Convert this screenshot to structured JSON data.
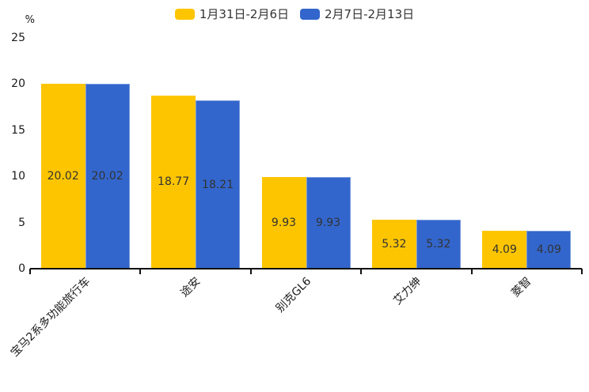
{
  "chart_data": {
    "type": "bar",
    "title": "",
    "categories": [
      "宝马2系多功能旅行车",
      "途安",
      "别克GL6",
      "艾力绅",
      "菱智"
    ],
    "series": [
      {
        "name": "1月31日-2月6日",
        "color": "#FDC500",
        "values": [
          20.02,
          18.77,
          9.93,
          5.32,
          4.09
        ]
      },
      {
        "name": "2月7日-2月13日",
        "color": "#3366CC",
        "values": [
          20.02,
          18.21,
          9.93,
          5.32,
          4.09
        ]
      }
    ],
    "value_labels": [
      [
        "20.02",
        "18.77",
        "9.93",
        "5.32",
        "4.09"
      ],
      [
        "20.02",
        "18.21",
        "9.93",
        "5.32",
        "4.09"
      ]
    ],
    "xlabel": "",
    "ylabel": "%",
    "yticks": [
      0,
      5,
      10,
      15,
      20,
      25
    ],
    "ylim": [
      0,
      25
    ],
    "grid": false,
    "legend_position": "top",
    "x_tick_style": "category-boundaries",
    "x_label_rotation_deg": 45,
    "colors": {
      "axis": "#111111",
      "tick_text": "#1a1a1a",
      "bar_value_text": "#333333",
      "background": "#ffffff"
    }
  }
}
